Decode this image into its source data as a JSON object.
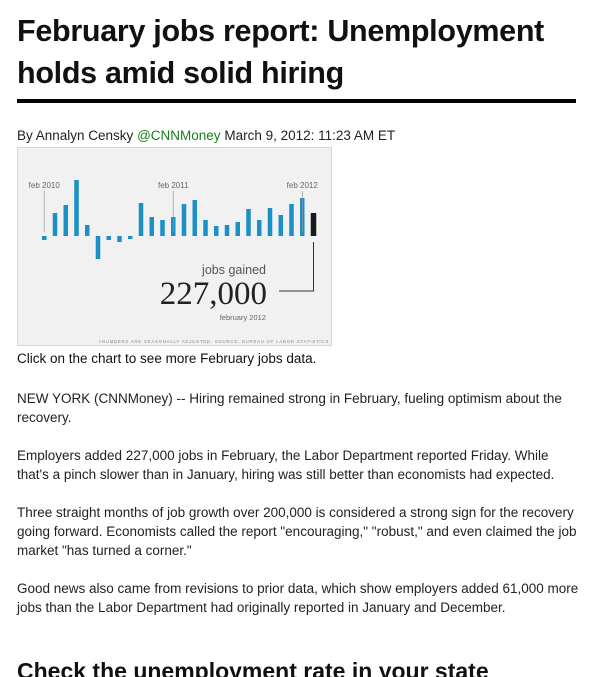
{
  "article": {
    "headline": "February jobs report: Unemployment holds amid solid hiring",
    "byline": {
      "prefix": "By Annalyn Censky",
      "handle": "@CNNMoney",
      "date": "March 9, 2012: 11:23 AM ET"
    },
    "chart_caption": "Click on the chart to see more February jobs data.",
    "paragraphs": [
      "NEW YORK (CNNMoney) -- Hiring remained strong in February, fueling optimism about the recovery.",
      "Employers added 227,000 jobs in February, the Labor Department reported Friday. While that's a pinch slower than in January, hiring was still better than economists had expected.",
      "Three straight months of job growth over 200,000 is considered a strong sign for the recovery going forward. Economists called the report \"encouraging,\" \"robust,\" and even claimed the job market \"has turned a corner.\"",
      "Good news also came from revisions to prior data, which show employers added 61,000 more jobs than the Labor Department had originally reported in January and December."
    ],
    "subhead": "Check the unemployment rate in your state"
  },
  "chart_data": {
    "type": "bar",
    "x_labels": [
      "feb 2010",
      "feb 2011",
      "feb 2012"
    ],
    "values": [
      -40,
      230,
      310,
      560,
      110,
      -230,
      -40,
      -60,
      -30,
      330,
      190,
      160,
      190,
      320,
      360,
      160,
      100,
      110,
      140,
      270,
      160,
      280,
      210,
      320,
      380,
      230
    ],
    "highlight_last": true,
    "callout_label": "jobs gained",
    "callout_value": "227,000",
    "callout_period": "february 2012",
    "footnote": "×NUMBERS ARE SEASONALLY ADJUSTED. SOURCE: BUREAU OF LABOR STATISTICS",
    "colors": {
      "bar": "#1a8fc8",
      "highlight": "#1a1a1a",
      "background": "#f1f1f1"
    }
  }
}
